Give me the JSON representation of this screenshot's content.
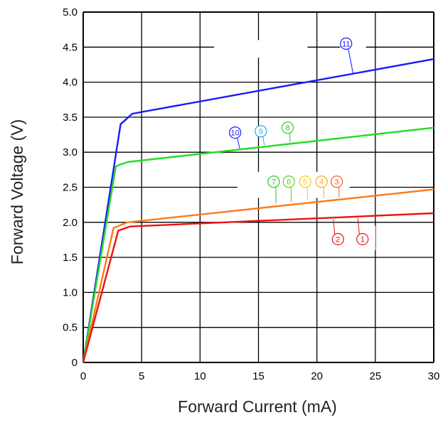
{
  "chart_data": {
    "type": "line",
    "xlabel": "Forward Current (mA)",
    "ylabel": "Forward Voltage (V)",
    "xlim": [
      0,
      30
    ],
    "ylim": [
      0,
      5.0
    ],
    "x_ticks": [
      "0",
      "5",
      "10",
      "15",
      "20",
      "25",
      "30"
    ],
    "y_ticks": [
      "0",
      "0.5",
      "1.0",
      "1.5",
      "2.0",
      "2.5",
      "3.0",
      "3.5",
      "4.0",
      "4.5",
      "5.0"
    ],
    "grid": true,
    "series": [
      {
        "color": "#1a1aff",
        "points": [
          [
            0,
            0
          ],
          [
            3.2,
            3.4
          ],
          [
            4.2,
            3.55
          ],
          [
            30,
            4.33
          ]
        ],
        "markers": [
          {
            "label": "⑪",
            "x": 22.5,
            "y": 4.55,
            "line_to": [
              23.1,
              4.12
            ]
          }
        ]
      },
      {
        "color": "#22dd22",
        "points": [
          [
            0,
            0
          ],
          [
            2.8,
            2.8
          ],
          [
            3.8,
            2.86
          ],
          [
            30,
            3.35
          ]
        ],
        "markers": [
          {
            "label": "⑩",
            "x": 13.0,
            "y": 3.28,
            "line_to": [
              13.4,
              3.05
            ]
          },
          {
            "label": "⑨",
            "x": 15.2,
            "y": 3.3,
            "line_to": [
              15.5,
              3.1
            ]
          },
          {
            "label": "⑧",
            "x": 17.5,
            "y": 3.35,
            "line_to": [
              17.7,
              3.14
            ]
          }
        ]
      },
      {
        "color": "#ff7a1a",
        "points": [
          [
            0,
            0
          ],
          [
            2.6,
            1.92
          ],
          [
            3.8,
            2.0
          ],
          [
            30,
            2.47
          ]
        ],
        "markers": [
          {
            "label": "⑦",
            "x": 16.3,
            "y": 2.58,
            "line_to": [
              16.5,
              2.27
            ]
          },
          {
            "label": "⑥",
            "x": 17.6,
            "y": 2.58,
            "line_to": [
              17.8,
              2.29
            ]
          },
          {
            "label": "⑤",
            "x": 19.0,
            "y": 2.58,
            "line_to": [
              19.2,
              2.32
            ]
          },
          {
            "label": "④",
            "x": 20.4,
            "y": 2.58,
            "line_to": [
              20.6,
              2.34
            ]
          },
          {
            "label": "③",
            "x": 21.7,
            "y": 2.58,
            "line_to": [
              21.9,
              2.36
            ]
          }
        ]
      },
      {
        "color": "#ee1111",
        "points": [
          [
            0,
            0
          ],
          [
            3.0,
            1.88
          ],
          [
            4.0,
            1.94
          ],
          [
            30,
            2.13
          ]
        ],
        "markers": [
          {
            "label": "②",
            "x": 21.8,
            "y": 1.76,
            "line_to": [
              21.4,
              2.04
            ]
          },
          {
            "label": "①",
            "x": 23.9,
            "y": 1.76,
            "line_to": [
              23.5,
              2.06
            ]
          }
        ]
      }
    ],
    "marker_colors": {
      "⑪": "#1a1aff",
      "⑩": "#1a1aff",
      "⑨": "#20b8e0",
      "⑧": "#22cc22",
      "⑦": "#22cc22",
      "⑥": "#66cc22",
      "⑤": "#ffcc00",
      "④": "#ffaa22",
      "③": "#ff5522",
      "②": "#ee1111",
      "①": "#ee1111"
    }
  }
}
